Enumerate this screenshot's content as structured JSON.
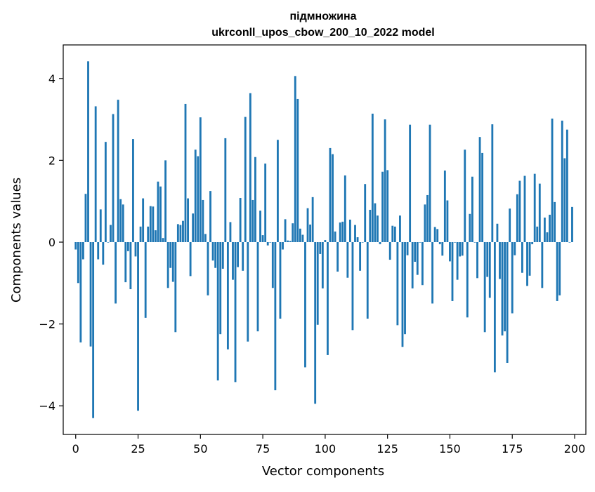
{
  "chart_data": {
    "type": "bar",
    "title_line1": "підмножина",
    "title_line2": "ukrconll_upos_cbow_200_10_2022 model",
    "xlabel": "Vector components",
    "ylabel": "Components values",
    "xlim": [
      -5,
      204.5
    ],
    "ylim": [
      -4.7,
      4.82
    ],
    "xticks": [
      0,
      25,
      50,
      75,
      100,
      125,
      150,
      175,
      200
    ],
    "xtick_labels": [
      "0",
      "25",
      "50",
      "75",
      "100",
      "125",
      "150",
      "175",
      "200"
    ],
    "yticks": [
      -4,
      -2,
      0,
      2,
      4
    ],
    "ytick_labels": [
      "−4",
      "−2",
      "0",
      "2",
      "4"
    ],
    "grid": false,
    "bar_color": "#1f77b4",
    "x": [
      0,
      1,
      2,
      3,
      4,
      5,
      6,
      7,
      8,
      9,
      10,
      11,
      12,
      13,
      14,
      15,
      16,
      17,
      18,
      19,
      20,
      21,
      22,
      23,
      24,
      25,
      26,
      27,
      28,
      29,
      30,
      31,
      32,
      33,
      34,
      35,
      36,
      37,
      38,
      39,
      40,
      41,
      42,
      43,
      44,
      45,
      46,
      47,
      48,
      49,
      50,
      51,
      52,
      53,
      54,
      55,
      56,
      57,
      58,
      59,
      60,
      61,
      62,
      63,
      64,
      65,
      66,
      67,
      68,
      69,
      70,
      71,
      72,
      73,
      74,
      75,
      76,
      77,
      78,
      79,
      80,
      81,
      82,
      83,
      84,
      85,
      86,
      87,
      88,
      89,
      90,
      91,
      92,
      93,
      94,
      95,
      96,
      97,
      98,
      99,
      100,
      101,
      102,
      103,
      104,
      105,
      106,
      107,
      108,
      109,
      110,
      111,
      112,
      113,
      114,
      115,
      116,
      117,
      118,
      119,
      120,
      121,
      122,
      123,
      124,
      125,
      126,
      127,
      128,
      129,
      130,
      131,
      132,
      133,
      134,
      135,
      136,
      137,
      138,
      139,
      140,
      141,
      142,
      143,
      144,
      145,
      146,
      147,
      148,
      149,
      150,
      151,
      152,
      153,
      154,
      155,
      156,
      157,
      158,
      159,
      160,
      161,
      162,
      163,
      164,
      165,
      166,
      167,
      168,
      169,
      170,
      171,
      172,
      173,
      174,
      175,
      176,
      177,
      178,
      179,
      180,
      181,
      182,
      183,
      184,
      185,
      186,
      187,
      188,
      189,
      190,
      191,
      192,
      193,
      194,
      195,
      196,
      197,
      198,
      199
    ],
    "values": [
      -0.18,
      -1.0,
      -2.45,
      -0.42,
      1.18,
      4.42,
      -2.55,
      -4.3,
      3.32,
      -0.42,
      0.8,
      -0.55,
      2.45,
      0.0,
      0.42,
      3.13,
      -1.5,
      3.48,
      1.05,
      0.92,
      -0.98,
      -0.22,
      -1.15,
      2.52,
      -0.35,
      -4.12,
      0.38,
      1.07,
      -1.85,
      0.38,
      0.88,
      0.87,
      0.29,
      1.48,
      1.36,
      0.1,
      2.0,
      -1.12,
      -0.63,
      -0.97,
      -2.2,
      0.44,
      0.42,
      0.52,
      3.38,
      1.07,
      -0.83,
      0.7,
      2.26,
      2.1,
      3.05,
      1.03,
      0.2,
      -1.3,
      1.25,
      -0.45,
      -0.63,
      -3.38,
      -2.25,
      -0.65,
      2.54,
      -2.62,
      0.49,
      -0.92,
      -3.42,
      -0.61,
      1.08,
      -0.7,
      3.06,
      -2.43,
      3.64,
      1.03,
      2.08,
      -2.18,
      0.77,
      0.17,
      1.92,
      -0.08,
      0.0,
      -1.12,
      -3.62,
      2.5,
      -1.87,
      -0.18,
      0.56,
      0.04,
      0.03,
      0.46,
      4.06,
      3.5,
      0.33,
      0.18,
      -3.06,
      0.83,
      0.43,
      1.1,
      -3.95,
      -2.02,
      -0.29,
      -1.13,
      0.05,
      -2.76,
      2.3,
      2.15,
      0.26,
      -0.72,
      0.48,
      0.5,
      1.63,
      -0.87,
      0.55,
      -2.15,
      0.42,
      0.12,
      -0.7,
      0.0,
      1.42,
      -1.87,
      0.79,
      3.14,
      0.95,
      0.65,
      -0.05,
      1.72,
      3.0,
      1.76,
      -0.43,
      0.4,
      0.38,
      -2.03,
      0.65,
      -2.56,
      -2.25,
      -0.32,
      2.87,
      -1.13,
      -0.48,
      -0.8,
      0.0,
      -1.05,
      0.92,
      1.15,
      2.87,
      -1.5,
      0.37,
      0.32,
      -0.05,
      -0.33,
      1.75,
      1.02,
      -0.47,
      -1.44,
      0.0,
      -0.92,
      -0.35,
      -0.33,
      2.26,
      -1.84,
      0.69,
      1.6,
      0.0,
      -0.88,
      2.57,
      2.18,
      -2.2,
      -0.85,
      -1.36,
      2.88,
      -3.18,
      0.45,
      -0.9,
      -2.28,
      -2.18,
      -2.95,
      0.82,
      -1.74,
      -0.32,
      1.17,
      1.5,
      -0.75,
      1.62,
      -1.07,
      -0.82,
      -0.05,
      1.67,
      0.38,
      1.43,
      -1.12,
      0.6,
      0.24,
      0.67,
      3.02,
      0.98,
      -1.44,
      -1.3,
      2.97,
      2.05,
      2.75,
      0.0,
      0.86
    ]
  }
}
